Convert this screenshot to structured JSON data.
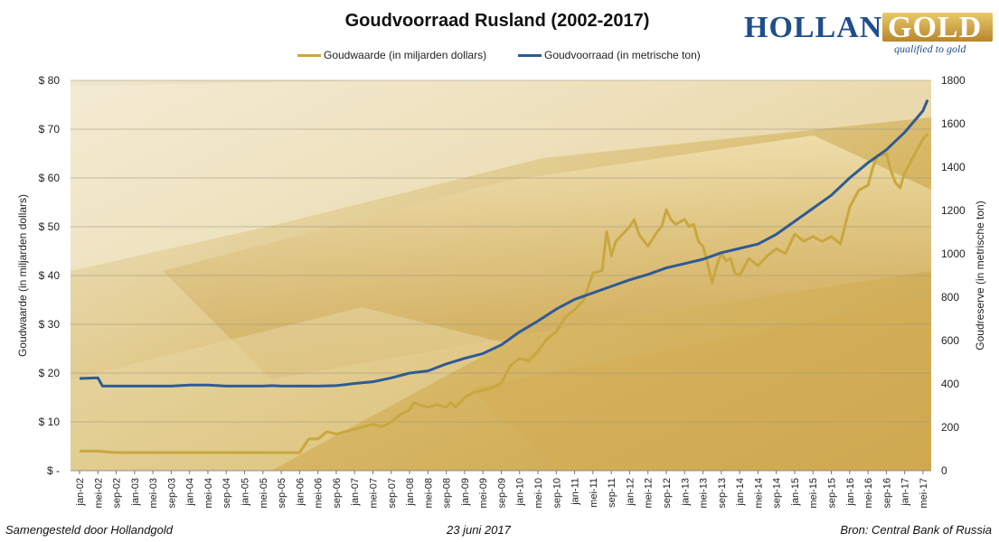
{
  "title": "Goudvoorraad Rusland (2002-2017)",
  "logo": {
    "part1": "HOLLAND",
    "part2": "GOLD",
    "tagline": "qualified to gold"
  },
  "footer": {
    "left": "Samengesteld door Hollandgold",
    "center": "23 juni 2017",
    "right": "Bron: Central Bank of Russia"
  },
  "colors": {
    "goudwaarde": "#c8a83e",
    "goudvoorraad": "#2e5b94"
  },
  "chart_data": {
    "type": "line",
    "legend_position": "top",
    "grid": true,
    "y_left": {
      "label": "Goudwaarde (in miljarden dollars)",
      "ticks": [
        "$ -",
        "$ 10",
        "$ 20",
        "$ 30",
        "$ 40",
        "$ 50",
        "$ 60",
        "$ 70",
        "$ 80"
      ],
      "lim": [
        0,
        80
      ]
    },
    "y_right": {
      "label": "Goudreserve (in metrische ton)",
      "ticks": [
        "0",
        "200",
        "400",
        "600",
        "800",
        "1000",
        "1200",
        "1400",
        "1600",
        "1800"
      ],
      "lim": [
        0,
        1800
      ]
    },
    "x_ticks": [
      "jan-02",
      "mei-02",
      "sep-02",
      "jan-03",
      "mei-03",
      "sep-03",
      "jan-04",
      "mei-04",
      "sep-04",
      "jan-05",
      "mei-05",
      "sep-05",
      "jan-06",
      "mei-06",
      "sep-06",
      "jan-07",
      "mei-07",
      "sep-07",
      "jan-08",
      "mei-08",
      "sep-08",
      "jan-09",
      "mei-09",
      "sep-09",
      "jan-10",
      "mei-10",
      "sep-10",
      "jan-11",
      "mei-11",
      "sep-11",
      "jan-12",
      "mei-12",
      "sep-12",
      "jan-13",
      "mei-13",
      "sep-13",
      "jan-14",
      "mei-14",
      "sep-14",
      "jan-15",
      "mei-15",
      "sep-15",
      "jan-16",
      "mei-16",
      "sep-16",
      "jan-17",
      "mei-17"
    ],
    "series": [
      {
        "name": "Goudwaarde (in miljarden dollars)",
        "axis": "left",
        "points": [
          [
            "jan-02",
            4.0
          ],
          [
            "mei-02",
            4.0
          ],
          [
            "sep-02",
            3.7
          ],
          [
            "jan-03",
            3.7
          ],
          [
            "mei-03",
            3.7
          ],
          [
            "sep-03",
            3.7
          ],
          [
            "jan-04",
            3.7
          ],
          [
            "mei-04",
            3.7
          ],
          [
            "sep-04",
            3.7
          ],
          [
            "jan-05",
            3.7
          ],
          [
            "mei-05",
            3.7
          ],
          [
            "sep-05",
            3.7
          ],
          [
            "jan-06",
            3.7
          ],
          [
            "mar-06",
            6.5
          ],
          [
            "mei-06",
            6.5
          ],
          [
            "jul-06",
            8.0
          ],
          [
            "sep-06",
            7.5
          ],
          [
            "nov-06",
            8.0
          ],
          [
            "jan-07",
            8.5
          ],
          [
            "mar-07",
            9.0
          ],
          [
            "mei-07",
            9.5
          ],
          [
            "jul-07",
            9.0
          ],
          [
            "sep-07",
            10.0
          ],
          [
            "nov-07",
            11.5
          ],
          [
            "jan-08",
            12.5
          ],
          [
            "feb-08",
            14.0
          ],
          [
            "mar-08",
            13.5
          ],
          [
            "mei-08",
            13.0
          ],
          [
            "jul-08",
            13.5
          ],
          [
            "sep-08",
            13.0
          ],
          [
            "okt-08",
            14.0
          ],
          [
            "nov-08",
            13.0
          ],
          [
            "jan-09",
            15.0
          ],
          [
            "mar-09",
            16.0
          ],
          [
            "mei-09",
            16.5
          ],
          [
            "jul-09",
            17.0
          ],
          [
            "sep-09",
            18.0
          ],
          [
            "nov-09",
            21.5
          ],
          [
            "jan-10",
            23.0
          ],
          [
            "mar-10",
            22.5
          ],
          [
            "mei-10",
            24.5
          ],
          [
            "jul-10",
            27.0
          ],
          [
            "sep-10",
            28.5
          ],
          [
            "nov-10",
            31.5
          ],
          [
            "jan-11",
            33.0
          ],
          [
            "mar-11",
            35.0
          ],
          [
            "mei-11",
            40.5
          ],
          [
            "jul-11",
            41.0
          ],
          [
            "aug-11",
            49.0
          ],
          [
            "sep-11",
            44.0
          ],
          [
            "okt-11",
            47.0
          ],
          [
            "nov-11",
            48.0
          ],
          [
            "jan-12",
            50.0
          ],
          [
            "feb-12",
            51.5
          ],
          [
            "mar-12",
            48.5
          ],
          [
            "mei-12",
            46.0
          ],
          [
            "jul-12",
            49.0
          ],
          [
            "aug-12",
            50.0
          ],
          [
            "sep-12",
            53.5
          ],
          [
            "okt-12",
            51.5
          ],
          [
            "nov-12",
            50.5
          ],
          [
            "jan-13",
            51.5
          ],
          [
            "feb-13",
            50.0
          ],
          [
            "mar-13",
            50.5
          ],
          [
            "apr-13",
            47.0
          ],
          [
            "mei-13",
            46.0
          ],
          [
            "jun-13",
            42.5
          ],
          [
            "jul-13",
            38.5
          ],
          [
            "aug-13",
            42.0
          ],
          [
            "sep-13",
            44.5
          ],
          [
            "okt-13",
            43.0
          ],
          [
            "nov-13",
            43.5
          ],
          [
            "dec-13",
            40.5
          ],
          [
            "jan-14",
            40.0
          ],
          [
            "mar-14",
            43.5
          ],
          [
            "mei-14",
            42.0
          ],
          [
            "jul-14",
            44.0
          ],
          [
            "sep-14",
            45.5
          ],
          [
            "nov-14",
            44.5
          ],
          [
            "jan-15",
            48.5
          ],
          [
            "mar-15",
            47.0
          ],
          [
            "mei-15",
            48.0
          ],
          [
            "jul-15",
            47.0
          ],
          [
            "sep-15",
            48.0
          ],
          [
            "nov-15",
            46.5
          ],
          [
            "jan-16",
            54.0
          ],
          [
            "mar-16",
            57.5
          ],
          [
            "mei-16",
            58.5
          ],
          [
            "jun-16",
            62.0
          ],
          [
            "jul-16",
            64.5
          ],
          [
            "sep-16",
            65.0
          ],
          [
            "okt-16",
            61.5
          ],
          [
            "nov-16",
            59.0
          ],
          [
            "dec-16",
            58.0
          ],
          [
            "jan-17",
            61.0
          ],
          [
            "mar-17",
            64.5
          ],
          [
            "mei-17",
            68.0
          ],
          [
            "jun-17",
            69.0
          ]
        ]
      },
      {
        "name": "Goudvoorraad (in metrische ton)",
        "axis": "right",
        "points": [
          [
            "jan-02",
            425
          ],
          [
            "mei-02",
            428
          ],
          [
            "jun-02",
            390
          ],
          [
            "sep-02",
            390
          ],
          [
            "jan-03",
            390
          ],
          [
            "mei-03",
            390
          ],
          [
            "sep-03",
            390
          ],
          [
            "jan-04",
            395
          ],
          [
            "mei-04",
            395
          ],
          [
            "sep-04",
            390
          ],
          [
            "jan-05",
            390
          ],
          [
            "mei-05",
            390
          ],
          [
            "jul-05",
            392
          ],
          [
            "sep-05",
            390
          ],
          [
            "jan-06",
            390
          ],
          [
            "mei-06",
            390
          ],
          [
            "sep-06",
            392
          ],
          [
            "jan-07",
            402
          ],
          [
            "mei-07",
            410
          ],
          [
            "sep-07",
            428
          ],
          [
            "jan-08",
            450
          ],
          [
            "mei-08",
            460
          ],
          [
            "sep-08",
            492
          ],
          [
            "jan-09",
            518
          ],
          [
            "mei-09",
            540
          ],
          [
            "sep-09",
            580
          ],
          [
            "jan-10",
            640
          ],
          [
            "mei-10",
            690
          ],
          [
            "sep-10",
            745
          ],
          [
            "jan-11",
            790
          ],
          [
            "mei-11",
            820
          ],
          [
            "sep-11",
            850
          ],
          [
            "jan-12",
            880
          ],
          [
            "mei-12",
            905
          ],
          [
            "sep-12",
            935
          ],
          [
            "jan-13",
            955
          ],
          [
            "mei-13",
            975
          ],
          [
            "sep-13",
            1005
          ],
          [
            "jan-14",
            1025
          ],
          [
            "mei-14",
            1045
          ],
          [
            "sep-14",
            1090
          ],
          [
            "jan-15",
            1150
          ],
          [
            "mei-15",
            1210
          ],
          [
            "sep-15",
            1270
          ],
          [
            "jan-16",
            1350
          ],
          [
            "mei-16",
            1420
          ],
          [
            "sep-16",
            1480
          ],
          [
            "jan-17",
            1560
          ],
          [
            "mei-17",
            1660
          ],
          [
            "jun-17",
            1710
          ]
        ]
      }
    ]
  }
}
